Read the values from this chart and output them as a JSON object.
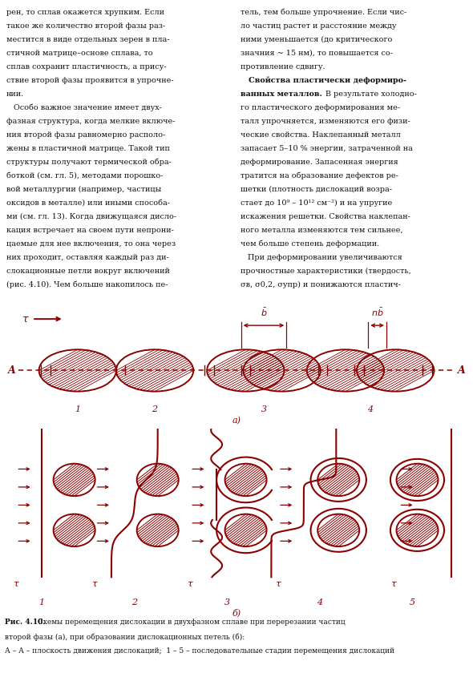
{
  "bg_color": "#ffffff",
  "lc": "#8B0000",
  "cc": "#111111",
  "fig_w": 5.9,
  "fig_h": 8.5,
  "top_left": [
    "рен, то сплав окажется хрупким. Если",
    "такое же количество второй фазы раз-",
    "местится в виде отдельных зерен в пла-",
    "стичной матрице–основе сплава, то",
    "сплав сохранит пластичность, а прису-",
    "ствие второй фазы проявится в упрочне-",
    "нии.",
    "   Особо важное значение имеет двух-",
    "фазная структура, когда мелкие включе-",
    "ния второй фазы равномерно располо-",
    "жены в пластичной матрице. Такой тип",
    "структуры получают термической обра-",
    "боткой (см. гл. 5), методами порошко-",
    "вой металлургии (например, частицы",
    "оксидов в металле) или иными способа-",
    "ми (см. гл. 13). Когда движущаяся дисло-",
    "кация встречает на своем пути непрони-",
    "цаемые для нее включения, то она через",
    "них проходит, оставляя каждый раз ди-",
    "слокационные петли вокруг включений",
    "(рис. 4.10). Чем больше накопилось пе-"
  ],
  "top_right": [
    "тель, тем больше упрочнение. Если чис-",
    "ло частиц растет и расстояние между",
    "ними уменьшается (до критического",
    "значния ~ 15 нм), то повышается со-",
    "противление сдвигу.",
    "Свойства пластически деформиро-",
    "ванных металлов.",
    "го пластического деформирования ме-",
    "талл упрочняется, изменяются его физи-",
    "ческие свойства. Наклепанный металл",
    "запасает 5–10 % энергии, затраченной на",
    "деформирование. Запасенная энергия",
    "тратится на образование дефектов ре-",
    "шетки (плотность дислокаций возра-",
    "стает до 10⁹ – 10¹² см⁻²) и на упругие",
    "искажения решетки. Свойства наклепан-",
    "ного металла изменяются тем сильнее,",
    "чем больше степень деформации.",
    "   При деформировании увеличиваются",
    "прочностные характеристики (твердость,",
    "σв, σ0,2, σупр) и понижаются пластич-"
  ],
  "caption1": "Рис. 4.10.",
  "caption2": " Схемы перемещения дислокации в двухфазном сплаве при перерезании частиц",
  "caption3": "второй фазы (а), при образовании дислокационных петель (б):",
  "caption4": "А – А – плоскость движения дислокаций;  1 – 5 – последовательные стадии перемещения дислокаций"
}
